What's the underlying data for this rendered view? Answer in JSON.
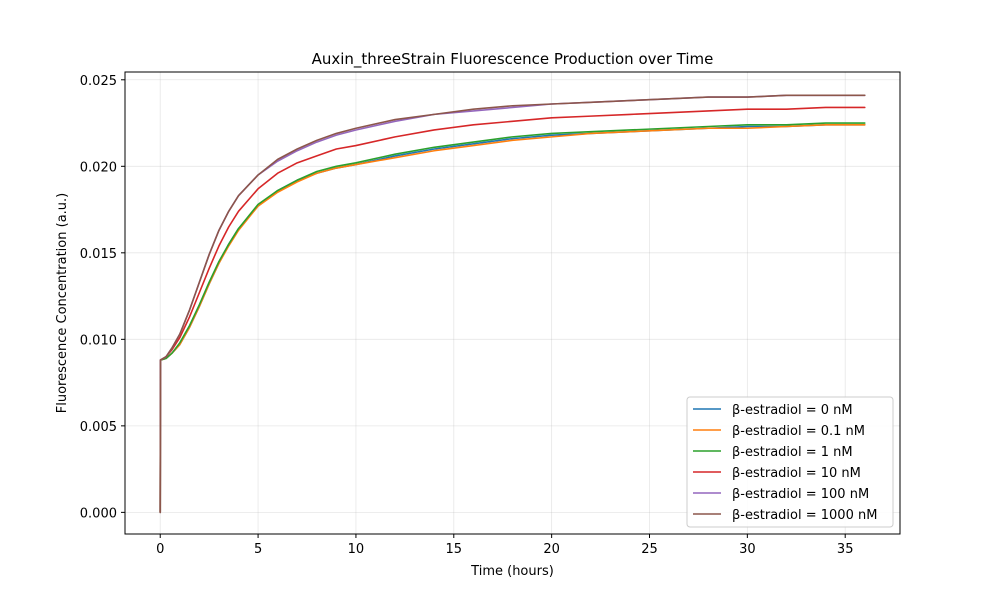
{
  "chart_data": {
    "type": "line",
    "title": "Auxin_threeStrain Fluorescence Production over Time",
    "xlabel": "Time (hours)",
    "ylabel": "Fluorescence Concentration (a.u.)",
    "xlim": [
      -1.8,
      37.8
    ],
    "ylim": [
      -0.00125,
      0.02545
    ],
    "xticks": [
      0,
      5,
      10,
      15,
      20,
      25,
      30,
      35
    ],
    "xtick_labels": [
      "0",
      "5",
      "10",
      "15",
      "20",
      "25",
      "30",
      "35"
    ],
    "yticks": [
      0,
      0.005,
      0.01,
      0.015,
      0.02,
      0.025
    ],
    "ytick_labels": [
      "0.000",
      "0.005",
      "0.010",
      "0.015",
      "0.020",
      "0.025"
    ],
    "grid": true,
    "legend_position": "lower right",
    "x": [
      0,
      0.01,
      0.3,
      0.6,
      1,
      1.5,
      2,
      2.5,
      3,
      3.5,
      4,
      5,
      6,
      7,
      8,
      9,
      10,
      12,
      14,
      16,
      18,
      20,
      22,
      24,
      26,
      28,
      30,
      32,
      34,
      36
    ],
    "series": [
      {
        "name": "β-estradiol = 0 nM",
        "color": "#1f77b4",
        "values": [
          0,
          0.0088,
          0.0089,
          0.0092,
          0.0097,
          0.0107,
          0.0119,
          0.0132,
          0.0144,
          0.0155,
          0.0164,
          0.0177,
          0.0186,
          0.0192,
          0.0196,
          0.0199,
          0.0201,
          0.0206,
          0.021,
          0.0213,
          0.0216,
          0.0218,
          0.0219,
          0.022,
          0.0221,
          0.0222,
          0.0223,
          0.0223,
          0.0224,
          0.0224
        ]
      },
      {
        "name": "β-estradiol = 0.1 nM",
        "color": "#ff7f0e",
        "values": [
          0,
          0.0088,
          0.0089,
          0.0092,
          0.0097,
          0.0107,
          0.0119,
          0.0132,
          0.0144,
          0.0154,
          0.0163,
          0.0177,
          0.0185,
          0.0191,
          0.0196,
          0.0199,
          0.0201,
          0.0205,
          0.0209,
          0.0212,
          0.0215,
          0.0217,
          0.0219,
          0.022,
          0.0221,
          0.0222,
          0.0222,
          0.0223,
          0.0224,
          0.0224
        ]
      },
      {
        "name": "β-estradiol = 1 nM",
        "color": "#2ca02c",
        "values": [
          0,
          0.0088,
          0.0089,
          0.0092,
          0.0098,
          0.0108,
          0.012,
          0.0133,
          0.0145,
          0.0155,
          0.0164,
          0.0178,
          0.0186,
          0.0192,
          0.0197,
          0.02,
          0.0202,
          0.0207,
          0.0211,
          0.0214,
          0.0217,
          0.0219,
          0.022,
          0.0221,
          0.0222,
          0.0223,
          0.0224,
          0.0224,
          0.0225,
          0.0225
        ]
      },
      {
        "name": "β-estradiol = 10 nM",
        "color": "#d62728",
        "values": [
          0,
          0.0088,
          0.009,
          0.0094,
          0.0101,
          0.0113,
          0.0127,
          0.0141,
          0.0154,
          0.0165,
          0.0174,
          0.0187,
          0.0196,
          0.0202,
          0.0206,
          0.021,
          0.0212,
          0.0217,
          0.0221,
          0.0224,
          0.0226,
          0.0228,
          0.0229,
          0.023,
          0.0231,
          0.0232,
          0.0233,
          0.0233,
          0.0234,
          0.0234
        ]
      },
      {
        "name": "β-estradiol = 100 nM",
        "color": "#9467bd",
        "values": [
          0,
          0.0088,
          0.009,
          0.0095,
          0.0103,
          0.0117,
          0.0133,
          0.0149,
          0.0163,
          0.0174,
          0.0183,
          0.0195,
          0.0203,
          0.0209,
          0.0214,
          0.0218,
          0.0221,
          0.0226,
          0.023,
          0.0232,
          0.0234,
          0.0236,
          0.0237,
          0.0238,
          0.0239,
          0.024,
          0.024,
          0.0241,
          0.0241,
          0.0241
        ]
      },
      {
        "name": "β-estradiol = 1000 nM",
        "color": "#8c564b",
        "values": [
          0,
          0.0088,
          0.009,
          0.0095,
          0.0103,
          0.0117,
          0.0133,
          0.0149,
          0.0163,
          0.0174,
          0.0183,
          0.0195,
          0.0204,
          0.021,
          0.0215,
          0.0219,
          0.0222,
          0.0227,
          0.023,
          0.0233,
          0.0235,
          0.0236,
          0.0237,
          0.0238,
          0.0239,
          0.024,
          0.024,
          0.0241,
          0.0241,
          0.0241
        ]
      }
    ]
  }
}
